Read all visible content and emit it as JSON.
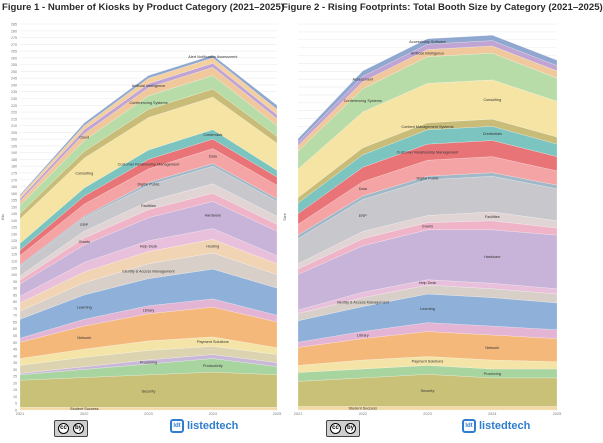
{
  "charts": [
    {
      "title": "Figure 1 - Number of Kiosks by Product Category (2021–2025)",
      "ylabel": "Kio",
      "yticks": [
        "285",
        "280",
        "275",
        "270",
        "265",
        "260",
        "255",
        "250",
        "245",
        "240",
        "235",
        "230",
        "225",
        "220",
        "215",
        "210",
        "205",
        "200",
        "195",
        "190",
        "185",
        "180",
        "175",
        "170",
        "165",
        "160",
        "155",
        "150",
        "145",
        "140",
        "135",
        "130",
        "125",
        "120",
        "115",
        "110",
        "105",
        "100",
        "95",
        "90",
        "85",
        "80",
        "75",
        "70",
        "65",
        "60",
        "55",
        "50",
        "45",
        "40",
        "35",
        "30",
        "25",
        "20",
        "15",
        "10",
        "5",
        "0"
      ],
      "xticks": [
        "2021",
        "2022",
        "2023",
        "2024",
        "2025"
      ]
    },
    {
      "title": "Figure 2 - Rising Footprints: Total Booth Size by Category (2021–2025)",
      "ylabel": "Size",
      "yticks": [
        "",
        "",
        "",
        "",
        "",
        "",
        "",
        "",
        "",
        "",
        "",
        "",
        "",
        "",
        "",
        "",
        "",
        "",
        "",
        "",
        "",
        "",
        "",
        "",
        "",
        "",
        "",
        "",
        "",
        "",
        "",
        "",
        "",
        "",
        "",
        "",
        "",
        "",
        "",
        "",
        "",
        "",
        "",
        "",
        "",
        "",
        "",
        "",
        "",
        ""
      ],
      "xticks": [
        "2021",
        "2022",
        "2023",
        "2024",
        "2025"
      ]
    }
  ],
  "chart_data": [
    {
      "type": "area",
      "title": "Figure 1 - Number of Kiosks by Product Category (2021–2025)",
      "ylabel": "Kio",
      "x": [
        "2021",
        "2022",
        "2023",
        "2024",
        "2025"
      ],
      "ylim": [
        0,
        285
      ],
      "series": [
        {
          "name": "Student Success",
          "color": "#f3d9a3",
          "values": [
            2,
            2,
            2,
            2,
            2
          ]
        },
        {
          "name": "Security",
          "color": "#c9c178",
          "values": [
            20,
            22,
            24,
            26,
            24
          ]
        },
        {
          "name": "Productivity",
          "color": "#a8d4a0",
          "values": [
            4,
            6,
            8,
            10,
            6
          ]
        },
        {
          "name": "Proctoring",
          "color": "#c9b8d8",
          "values": [
            1,
            2,
            3,
            3,
            3
          ]
        },
        {
          "name": "",
          "color": "#dcd4b0",
          "values": [
            6,
            7,
            7,
            6,
            6
          ]
        },
        {
          "name": "Payment Solutions",
          "color": "#f4e4a8",
          "values": [
            5,
            6,
            7,
            7,
            5
          ]
        },
        {
          "name": "Network",
          "color": "#f4b87a",
          "values": [
            12,
            17,
            20,
            22,
            19
          ]
        },
        {
          "name": "Library",
          "color": "#e4b4d4",
          "values": [
            3,
            5,
            6,
            6,
            5
          ]
        },
        {
          "name": "Learning",
          "color": "#8fb0d8",
          "values": [
            14,
            18,
            20,
            22,
            20
          ]
        },
        {
          "name": "Identity & Access Management",
          "color": "#d8d0c8",
          "values": [
            6,
            9,
            11,
            12,
            10
          ]
        },
        {
          "name": "Hosting",
          "color": "#f1d4b4",
          "values": [
            6,
            8,
            9,
            10,
            8
          ]
        },
        {
          "name": "Help Desk",
          "color": "#e8c0dc",
          "values": [
            5,
            7,
            8,
            8,
            6
          ]
        },
        {
          "name": "Hardware",
          "color": "#c8b4d8",
          "values": [
            9,
            13,
            17,
            20,
            18
          ]
        },
        {
          "name": "Grants",
          "color": "#f0b4c8",
          "values": [
            3,
            5,
            6,
            6,
            5
          ]
        },
        {
          "name": "Facilities",
          "color": "#e0d4d4",
          "values": [
            3,
            5,
            6,
            7,
            6
          ]
        },
        {
          "name": "ERP",
          "color": "#c8c8cc",
          "values": [
            7,
            10,
            12,
            13,
            11
          ]
        },
        {
          "name": "Digital Public",
          "color": "#a0b8c8",
          "values": [
            1,
            1,
            2,
            2,
            2
          ]
        },
        {
          "name": "Data",
          "color": "#f4a4a4",
          "values": [
            7,
            9,
            10,
            11,
            10
          ]
        },
        {
          "name": "Customer Relationship Management",
          "color": "#e87478",
          "values": [
            4,
            6,
            7,
            7,
            6
          ]
        },
        {
          "name": "Credentials",
          "color": "#7cc4c0",
          "values": [
            5,
            6,
            7,
            7,
            5
          ]
        },
        {
          "name": "Consulting",
          "color": "#f6e4a4",
          "values": [
            18,
            22,
            24,
            24,
            20
          ]
        },
        {
          "name": "",
          "color": "#c8bc78",
          "values": [
            4,
            5,
            6,
            6,
            5
          ]
        },
        {
          "name": "Conferencing Systems",
          "color": "#b8dca8",
          "values": [
            6,
            8,
            10,
            10,
            8
          ]
        },
        {
          "name": "Cloud",
          "color": "#f0c89c",
          "values": [
            3,
            5,
            6,
            6,
            5
          ]
        },
        {
          "name": "Artificial Intelligence",
          "color": "#c0a4d4",
          "values": [
            2,
            3,
            3,
            3,
            3
          ]
        },
        {
          "name": "",
          "color": "#f4d0a0",
          "values": [
            2,
            3,
            4,
            4,
            4
          ]
        },
        {
          "name": "Alert Notification Assessment",
          "color": "#90a8d0",
          "values": [
            1,
            2,
            2,
            2,
            3
          ]
        }
      ]
    },
    {
      "type": "area",
      "title": "Figure 2 - Rising Footprints: Total Booth Size by Category (2021–2025)",
      "ylabel": "Size",
      "x": [
        "2021",
        "2022",
        "2023",
        "2024",
        "2025"
      ],
      "series": [
        {
          "name": "Student Success",
          "color": "#f3d9a3",
          "values": [
            2,
            2,
            2,
            2,
            2
          ]
        },
        {
          "name": "Security",
          "color": "#c9c178",
          "values": [
            14,
            16,
            18,
            16,
            16
          ]
        },
        {
          "name": "Proctoring",
          "color": "#a8d4a0",
          "values": [
            5,
            5,
            5,
            5,
            5
          ]
        },
        {
          "name": "Payment Solutions",
          "color": "#f4e4a8",
          "values": [
            4,
            5,
            5,
            5,
            4
          ]
        },
        {
          "name": "Network",
          "color": "#f4b87a",
          "values": [
            10,
            12,
            14,
            14,
            13
          ]
        },
        {
          "name": "Library",
          "color": "#e4b4d4",
          "values": [
            3,
            4,
            5,
            5,
            5
          ]
        },
        {
          "name": "Learning",
          "color": "#8fb0d8",
          "values": [
            12,
            14,
            16,
            16,
            15
          ]
        },
        {
          "name": "Identity & Access Management",
          "color": "#d8d0c8",
          "values": [
            4,
            5,
            5,
            5,
            5
          ]
        },
        {
          "name": "Help Desk",
          "color": "#e8c0dc",
          "values": [
            2,
            3,
            3,
            3,
            3
          ]
        },
        {
          "name": "Hardware",
          "color": "#c8b4d8",
          "values": [
            20,
            26,
            28,
            30,
            30
          ]
        },
        {
          "name": "Grants",
          "color": "#f0b4c8",
          "values": [
            3,
            4,
            4,
            5,
            4
          ]
        },
        {
          "name": "Facilities",
          "color": "#e0d4d4",
          "values": [
            3,
            4,
            4,
            5,
            4
          ]
        },
        {
          "name": "ERP",
          "color": "#c8c8cc",
          "values": [
            14,
            18,
            20,
            20,
            18
          ]
        },
        {
          "name": "Digital Public",
          "color": "#a0b8c8",
          "values": [
            2,
            2,
            2,
            2,
            2
          ]
        },
        {
          "name": "Data",
          "color": "#f4a4a4",
          "values": [
            6,
            8,
            9,
            9,
            8
          ]
        },
        {
          "name": "Customer Relationship Management",
          "color": "#e87478",
          "values": [
            6,
            8,
            9,
            9,
            8
          ]
        },
        {
          "name": "Credentials",
          "color": "#7cc4c0",
          "values": [
            6,
            7,
            8,
            8,
            7
          ]
        },
        {
          "name": "Content Management Systems",
          "color": "#c8bc78",
          "values": [
            3,
            4,
            4,
            4,
            4
          ]
        },
        {
          "name": "Consulting",
          "color": "#f6e4a4",
          "values": [
            16,
            20,
            22,
            22,
            20
          ]
        },
        {
          "name": "Conferencing Systems",
          "color": "#b8dca8",
          "values": [
            10,
            13,
            15,
            15,
            13
          ]
        },
        {
          "name": "Artificial Intelligence",
          "color": "#f0c89c",
          "values": [
            3,
            4,
            4,
            4,
            4
          ]
        },
        {
          "name": "Assessment",
          "color": "#c0a4d4",
          "values": [
            2,
            3,
            3,
            3,
            3
          ]
        },
        {
          "name": "Accessibility Software",
          "color": "#90a8d0",
          "values": [
            2,
            3,
            3,
            3,
            3
          ]
        }
      ]
    }
  ],
  "footer": {
    "license_left": "cc",
    "license_right": "by",
    "brand_mark": "ldt",
    "brand": "listedtech"
  }
}
